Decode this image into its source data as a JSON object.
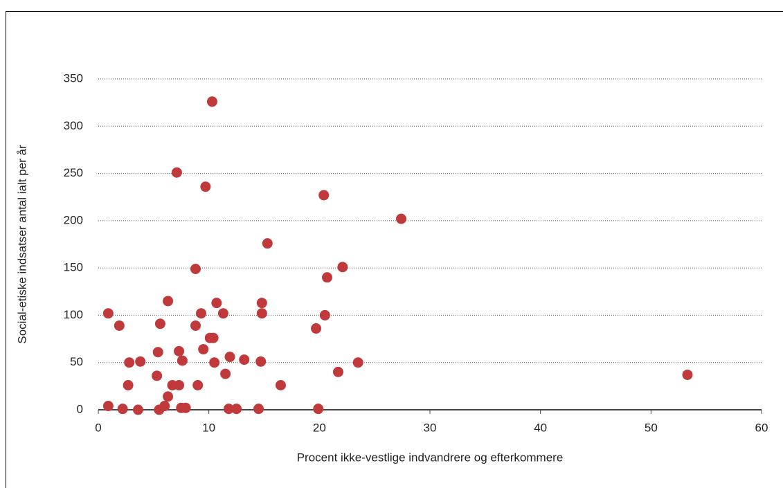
{
  "chart_data": {
    "type": "scatter",
    "xlabel": "Procent ikke-vestlige indvandrere og efterkommere",
    "ylabel": "Social-etiske indsatser antal ialt per år",
    "color": "#c0393b",
    "x": [
      0.9,
      0.9,
      1.9,
      2.2,
      2.8,
      2.7,
      3.6,
      3.8,
      5.3,
      5.4,
      5.5,
      5.6,
      6.0,
      6.3,
      6.3,
      6.7,
      7.1,
      7.3,
      7.3,
      7.5,
      7.6,
      7.9,
      8.8,
      8.8,
      9.0,
      9.3,
      9.5,
      9.7,
      10.1,
      10.4,
      10.3,
      10.5,
      10.7,
      11.3,
      11.5,
      11.8,
      11.9,
      12.5,
      13.2,
      14.5,
      14.7,
      14.8,
      14.8,
      15.3,
      16.5,
      19.7,
      19.9,
      20.4,
      20.5,
      20.7,
      21.7,
      22.1,
      23.5,
      27.4,
      53.3
    ],
    "values": [
      102,
      4,
      89,
      1,
      50,
      26,
      0,
      51,
      36,
      61,
      0,
      91,
      4,
      115,
      14,
      26,
      251,
      62,
      26,
      2,
      52,
      2,
      149,
      89,
      26,
      102,
      64,
      236,
      76,
      76,
      326,
      50,
      113,
      102,
      38,
      1,
      56,
      1,
      53,
      1,
      51,
      102,
      113,
      176,
      26,
      86,
      1,
      227,
      100,
      140,
      40,
      151,
      50,
      202,
      37
    ],
    "xlim": [
      0,
      60
    ],
    "xticks": [
      0,
      10,
      20,
      30,
      40,
      50,
      60
    ],
    "ylim": [
      0,
      350
    ],
    "yticks": [
      0,
      50,
      100,
      150,
      200,
      250,
      300,
      350
    ],
    "grid": true
  }
}
